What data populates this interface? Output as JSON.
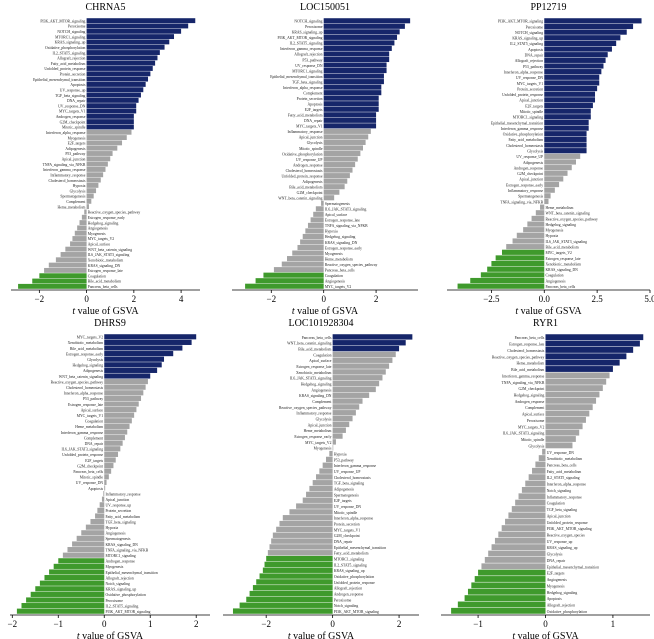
{
  "colors": {
    "positive": "#16266a",
    "neutral": "#a4a4a4",
    "negative": "#3f9a2c"
  },
  "chart_data": [
    {
      "type": "bar",
      "title": "CHRNA5",
      "xlabel_italic": "t",
      "xlabel_rest": " value of GSVA",
      "xlim": [
        -3.2,
        4.8
      ],
      "xticks": [
        -2,
        0,
        2,
        4
      ],
      "categories": [
        "PI3K_AKT_MTOR_signaling",
        "Peroxisome",
        "NOTCH_signaling",
        "MTORC1_signaling",
        "KRAS_signaling_up",
        "Oxidative_phosphorylation",
        "IL2_STAT5_signaling",
        "Allograft_rejection",
        "Fatty_acid_metabolism",
        "Unfolded_protein_response",
        "Protein_secretion",
        "Epithelial_mesenchymal_transition",
        "Apoptosis",
        "UV_response_up",
        "TGF_beta_signaling",
        "DNA_repair",
        "UV_response_DN",
        "MYC_targets_V1",
        "Androgen_response",
        "G2M_checkpoint",
        "Mitotic_spindle",
        "Interferon_alpha_response",
        "Myogenesis",
        "E2F_targets",
        "Adipogenesis",
        "P53_pathway",
        "Apical_junction",
        "TNFA_signaling_via_NFKB",
        "Interferon_gamma_response",
        "Inflammatory_response",
        "Cholesterol_homeostasis",
        "Hypoxia",
        "Glycolysis",
        "Spermatogenesis",
        "Complement",
        "Heme_metabolism",
        "Reactive_oxygen_species_pathway",
        "Estrogen_response_early",
        "Hedgehog_signaling",
        "Angiogenesis",
        "Myogenesis",
        "MYC_targets_V2",
        "Apical_surface",
        "WNT_beta_catenin_signaling",
        "IL6_JAK_STAT3_signaling",
        "Xenobiotic_metabolism",
        "KRAS_signaling_DN",
        "Estrogen_response_late",
        "Coagulation",
        "Bile_acid_metabolism",
        "Pancreas_beta_cells"
      ],
      "values": [
        4.6,
        4.3,
        4.0,
        3.7,
        3.5,
        3.3,
        3.1,
        3.0,
        2.9,
        2.8,
        2.7,
        2.6,
        2.5,
        2.4,
        2.3,
        2.2,
        2.1,
        2.1,
        2.0,
        2.0,
        2.0,
        1.9,
        1.7,
        1.5,
        1.3,
        1.1,
        1.0,
        0.9,
        0.8,
        0.7,
        0.6,
        0.5,
        0.4,
        0.3,
        0.2,
        0.1,
        -0.1,
        -0.2,
        -0.3,
        -0.4,
        -0.5,
        -0.6,
        -0.7,
        -0.9,
        -1.1,
        -1.3,
        -1.6,
        -1.8,
        -2.0,
        -2.3,
        -2.9
      ],
      "threshold": 2
    },
    {
      "type": "bar",
      "title": "LOC150051",
      "xlabel_italic": "t",
      "xlabel_rest": " value of GSVA",
      "xlim": [
        -3.5,
        3.6
      ],
      "xticks": [
        -2,
        0,
        2
      ],
      "categories": [
        "NOTCH_signaling",
        "Peroxisome",
        "KRAS_signaling_up",
        "PI3K_AKT_MTOR_signaling",
        "IL2_STAT5_signaling",
        "Interferon_gamma_response",
        "Allograft_rejection",
        "P53_pathway",
        "UV_response_DN",
        "MTORC1_signaling",
        "Epithelial_mesenchymal_transition",
        "TGF_beta_signaling",
        "Interferon_alpha_response",
        "Complement",
        "Protein_secretion",
        "Apoptosis",
        "E2F_targets",
        "Fatty_acid_metabolism",
        "DNA_repair",
        "MYC_targets_V1",
        "Inflammatory_response",
        "Apical_junction",
        "Glycolysis",
        "Mitotic_spindle",
        "Oxidative_phosphorylation",
        "UV_response_UP",
        "Androgen_response",
        "Cholesterol_homeostasis",
        "Unfolded_protein_response",
        "Adipogenesis",
        "Bile_acid_metabolism",
        "G2M_checkpoint",
        "WNT_beta_catenin_signaling",
        "Spermatogenesis",
        "IL6_JAK_STAT3_signaling",
        "Apical_surface",
        "Estrogen_response_late",
        "TNFA_signaling_via_NFKB",
        "Hypoxia",
        "Hedgehog_signaling",
        "KRAS_signaling_DN",
        "Estrogen_response_early",
        "Myogenesis",
        "Heme_metabolism",
        "Reactive_oxygen_species_pathway",
        "Pancreas_beta_cells",
        "Coagulation",
        "Angiogenesis",
        "MYC_targets_V2"
      ],
      "values": [
        3.3,
        3.1,
        2.9,
        2.8,
        2.7,
        2.6,
        2.5,
        2.5,
        2.4,
        2.4,
        2.3,
        2.3,
        2.2,
        2.2,
        2.1,
        2.1,
        2.1,
        2.0,
        2.0,
        2.0,
        1.8,
        1.7,
        1.6,
        1.5,
        1.4,
        1.3,
        1.2,
        1.1,
        1.0,
        0.9,
        0.8,
        0.6,
        0.4,
        -0.1,
        -0.3,
        -0.4,
        -0.5,
        -0.6,
        -0.7,
        -0.8,
        -0.9,
        -1.0,
        -1.2,
        -1.4,
        -1.6,
        -1.9,
        -2.3,
        -2.6,
        -3.0
      ],
      "threshold": 2
    },
    {
      "type": "bar",
      "title": "PP12719",
      "xlabel_italic": "t",
      "xlabel_rest": " value of GSVA",
      "xlim": [
        -4.6,
        5.0
      ],
      "xticks": [
        -2.5,
        0.0,
        2.5,
        5.0
      ],
      "tick_format": "fixed1",
      "categories": [
        "PI3K_AKT_MTOR_signaling",
        "Peroxisome",
        "NOTCH_signaling",
        "KRAS_signaling_up",
        "IL2_STAT5_signaling",
        "Apoptosis",
        "DNA_repair",
        "Allograft_rejection",
        "P53_pathway",
        "Interferon_alpha_response",
        "UV_response_DN",
        "MYC_targets_V1",
        "Protein_secretion",
        "Unfolded_protein_response",
        "Apical_junction",
        "E2F_targets",
        "Mitotic_spindle",
        "MTORC1_signaling",
        "Epithelial_mesenchymal_transition",
        "Interferon_gamma_response",
        "Oxidative_phosphorylation",
        "Fatty_acid_metabolism",
        "Cholesterol_homeostasis",
        "Glycolysis",
        "UV_response_UP",
        "Adipogenesis",
        "Androgen_response",
        "G2M_checkpoint",
        "Apical_junction",
        "Estrogen_response_early",
        "Inflammatory_response",
        "Spermatogenesis",
        "TNFA_signaling_via_NFKB",
        "Heme_metabolism",
        "WNT_beta_catenin_signaling",
        "Reactive_oxygen_species_pathway",
        "Hedgehog_signaling",
        "Myogenesis",
        "Hypoxia",
        "IL6_JAK_STAT3_signaling",
        "Bile_acid_metabolism",
        "MYC_targets_V2",
        "Estrogen_response_late",
        "Xenobiotic_metabolism",
        "KRAS_signaling_DN",
        "Coagulation",
        "Angiogenesis",
        "Pancreas_beta_cells"
      ],
      "values": [
        4.6,
        4.2,
        3.9,
        3.6,
        3.4,
        3.2,
        3.0,
        2.9,
        2.8,
        2.7,
        2.6,
        2.6,
        2.5,
        2.4,
        2.4,
        2.3,
        2.2,
        2.2,
        2.1,
        2.1,
        2.0,
        2.0,
        2.0,
        2.0,
        1.7,
        1.5,
        1.3,
        1.1,
        0.9,
        0.7,
        0.5,
        0.3,
        0.2,
        -0.2,
        -0.4,
        -0.6,
        -0.8,
        -1.0,
        -1.3,
        -1.5,
        -1.8,
        -2.0,
        -2.3,
        -2.5,
        -2.7,
        -3.0,
        -3.5,
        -4.1
      ],
      "threshold": 2
    },
    {
      "type": "bar",
      "title": "DHRS9",
      "xlabel_italic": "t",
      "xlabel_rest": " value of GSVA",
      "xlim": [
        -2.05,
        2.3
      ],
      "xticks": [
        -2,
        -1,
        0,
        1,
        2
      ],
      "categories": [
        "MYC_targets_V2",
        "Xenobiotic_metabolism",
        "Bile_acid_metabolism",
        "Estrogen_response_early",
        "Glycolysis",
        "Hedgehog_signaling",
        "Adipogenesis",
        "WNT_beta_catenin_signaling",
        "Reactive_oxygen_species_pathway",
        "Cholesterol_homeostasis",
        "Interferon_alpha_response",
        "P53_pathway",
        "Estrogen_response_late",
        "Apical_surface",
        "MYC_targets_V1",
        "Coagulation",
        "Heme_metabolism",
        "Interferon_gamma_response",
        "Complement",
        "DNA_repair",
        "IL6_JAK_STAT3_signaling",
        "Unfolded_protein_response",
        "E2F_targets",
        "G2M_checkpoint",
        "Pancreas_beta_cells",
        "Mitotic_spindle",
        "UV_response_DN",
        "Apoptosis",
        "Inflammatory_response",
        "Apical_junction",
        "UV_response_up",
        "Protein_secretion",
        "Fatty_acid_metabolism",
        "TGF_beta_signaling",
        "Hypoxia",
        "Angiogenesis",
        "Spermatogenesis",
        "KRAS_signaling_DN",
        "TNFA_signaling_via_NFKB",
        "MTORC1_signaling",
        "Androgen_response",
        "Myogenesis",
        "Epithelial_mesenchymal_transition",
        "Allograft_rejection",
        "Notch_signaling",
        "KRAS_signaling_up",
        "Oxidative_phosphorylation",
        "Peroxisome",
        "IL2_STAT5_signaling",
        "PI3K_AKT_MTOR_signaling"
      ],
      "values": [
        2.0,
        1.9,
        1.7,
        1.5,
        1.3,
        1.25,
        1.15,
        1.0,
        0.95,
        0.9,
        0.85,
        0.8,
        0.75,
        0.7,
        0.65,
        0.6,
        0.55,
        0.5,
        0.45,
        0.4,
        0.35,
        0.3,
        0.25,
        0.2,
        0.15,
        0.1,
        0.05,
        0.02,
        -0.02,
        -0.05,
        -0.1,
        -0.15,
        -0.2,
        -0.3,
        -0.4,
        -0.5,
        -0.6,
        -0.7,
        -0.8,
        -0.9,
        -1.0,
        -1.1,
        -1.2,
        -1.3,
        -1.4,
        -1.5,
        -1.6,
        -1.7,
        -1.8,
        -1.9
      ],
      "threshold": 1
    },
    {
      "type": "bar",
      "title": "LOC101928304",
      "xlabel_italic": "t",
      "xlabel_rest": " value of GSVA",
      "xlim": [
        -3.3,
        2.6
      ],
      "xticks": [
        -2,
        0,
        2
      ],
      "categories": [
        "Pancreas_beta_cells",
        "WNT_beta_catenin_signaling",
        "Bile_acid_metabolism",
        "Coagulation",
        "Apical_surface",
        "Estrogen_response_late",
        "Xenobiotic_metabolism",
        "IL6_JAK_STAT3_signaling",
        "Hedgehog_signaling",
        "Angiogenesis",
        "KRAS_signaling_DN",
        "Complement",
        "Reactive_oxygen_species_pathway",
        "Inflammatory_response",
        "Glycolysis",
        "Apical_junction",
        "Heme_metabolism",
        "Estrogen_response_early",
        "MYC_targets_V2",
        "Myogenesis",
        "Hypoxia",
        "P53_pathway",
        "Interferon_gamma_response",
        "UV_response_UP",
        "Cholesterol_homeostasis",
        "TGF_beta_signaling",
        "Adipogenesis",
        "Spermatogenesis",
        "E2F_targets",
        "UV_response_DN",
        "Mitotic_spindle",
        "Interferon_alpha_response",
        "Protein_secretion",
        "MYC_targets_V1",
        "G2M_checkpoint",
        "DNA_repair",
        "Epithelial_mesenchymal_transition",
        "Fatty_acid_metabolism",
        "MTORC1_signaling",
        "IL2_STAT5_signaling",
        "KRAS_signaling_up",
        "Oxidative_phosphorylation",
        "Unfolded_protein_response",
        "Allograft_rejection",
        "Androgen_response",
        "Peroxisome",
        "Notch_signaling",
        "PI3K_AKT_MTOR_signaling"
      ],
      "values": [
        2.4,
        2.2,
        2.0,
        1.9,
        1.8,
        1.7,
        1.6,
        1.5,
        1.4,
        1.3,
        1.1,
        0.9,
        0.8,
        0.7,
        0.6,
        0.5,
        0.4,
        0.3,
        0.1,
        0.0,
        -0.1,
        -0.2,
        -0.3,
        -0.4,
        -0.5,
        -0.6,
        -0.7,
        -0.8,
        -0.9,
        -1.1,
        -1.3,
        -1.5,
        -1.6,
        -1.7,
        -1.8,
        -1.85,
        -1.9,
        -1.95,
        -2.0,
        -2.05,
        -2.1,
        -2.2,
        -2.3,
        -2.4,
        -2.5,
        -2.6,
        -2.8,
        -3.0
      ],
      "threshold": 2
    },
    {
      "type": "bar",
      "title": "RYR1",
      "xlabel_italic": "t",
      "xlabel_rest": " value of GSVA",
      "xlim": [
        -1.55,
        1.55
      ],
      "xticks": [
        -1,
        0,
        1
      ],
      "categories": [
        "Pancreas_beta_cells",
        "Estrogen_response_late",
        "Cholesterol_homeostasis",
        "Reactive_oxygen_species_pathway",
        "Heme_metabolism",
        "Bile_acid_metabolism",
        "Interferon_gamma_response",
        "TNFA_signaling_via_NFKB",
        "G2M_checkpoint",
        "Hedgehog_signaling",
        "Androgen_response",
        "Complement",
        "Apical_surface",
        "Peroxisome",
        "MYC_targets_V2",
        "IL6_JAK_STAT3_signaling",
        "Mitotic_spindle",
        "Glycolysis",
        "UV_response_DN",
        "Xenobiotic_metabolism",
        "Pancreas_beta_cells",
        "Fatty_acid_metabolism",
        "IL2_STAT5_signaling",
        "Interferon_alpha_response",
        "Notch_signaling",
        "Inflammatory_response",
        "Coagulation",
        "TGF_beta_signaling",
        "Apical_junction",
        "Unfolded_protein_response",
        "PI3K_AKT_MTOR_signaling",
        "Reactive_oxygen_species",
        "UV_response_up",
        "KRAS_signaling_up",
        "Glycolysis",
        "DNA_repair",
        "Epithelial_mesenchymal_transition",
        "E2F_targets",
        "Angiogenesis",
        "Myogenesis",
        "Hedgehog_signaling",
        "Apoptosis",
        "Allograft_rejection",
        "Oxidative_phosphorylation"
      ],
      "values": [
        1.45,
        1.4,
        1.3,
        1.2,
        1.1,
        1.0,
        0.95,
        0.9,
        0.85,
        0.8,
        0.75,
        0.7,
        0.65,
        0.6,
        0.55,
        0.5,
        0.45,
        0.4,
        -0.05,
        -0.1,
        -0.15,
        -0.2,
        -0.25,
        -0.3,
        -0.35,
        -0.4,
        -0.45,
        -0.5,
        -0.55,
        -0.6,
        -0.65,
        -0.7,
        -0.75,
        -0.8,
        -0.85,
        -0.9,
        -0.95,
        -1.0,
        -1.05,
        -1.1,
        -1.15,
        -1.2,
        -1.3,
        -1.4
      ],
      "threshold": 1
    }
  ]
}
